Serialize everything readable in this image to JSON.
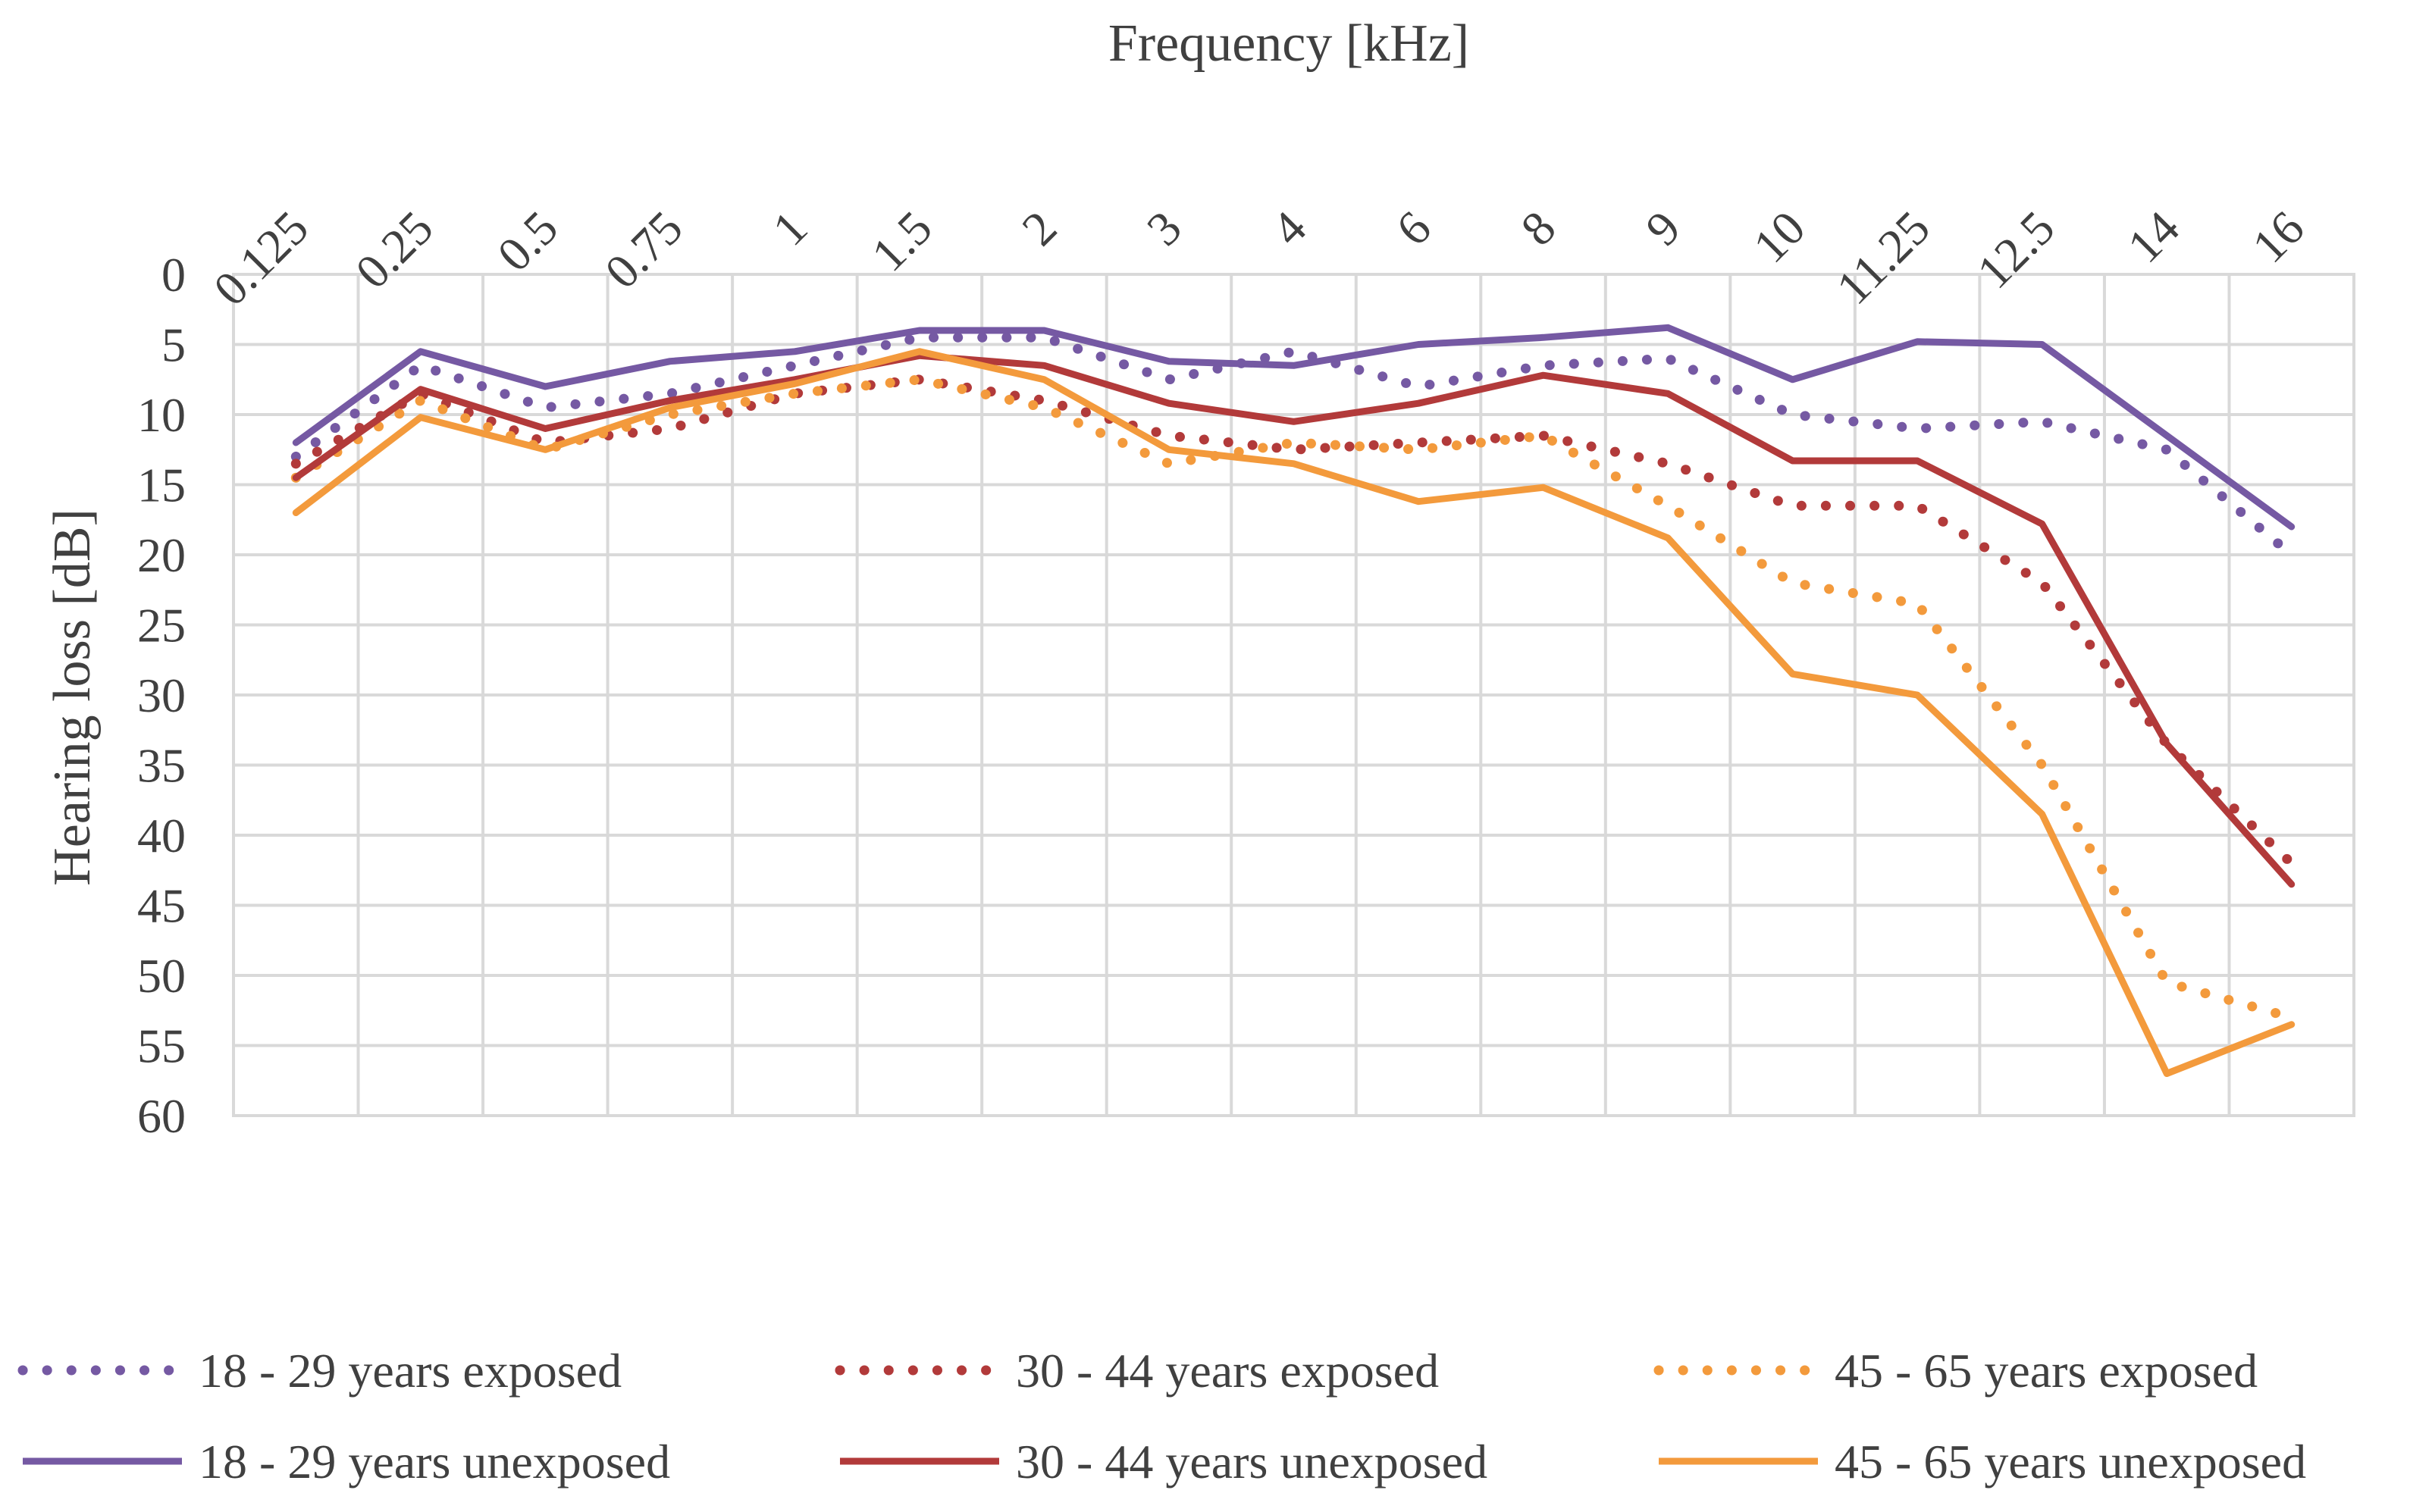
{
  "chart_data": {
    "type": "line",
    "title": "",
    "xlabel": "Frequency [kHz]",
    "ylabel": "Hearing loss [dB]",
    "x_axis_position": "top",
    "y_axis_inverted": true,
    "ylim": [
      0,
      60
    ],
    "y_ticks": [
      0,
      5,
      10,
      15,
      20,
      25,
      30,
      35,
      40,
      45,
      50,
      55,
      60
    ],
    "grid": true,
    "legend_position": "bottom",
    "categories": [
      "0.125",
      "0.25",
      "0.5",
      "0.75",
      "1",
      "1.5",
      "2",
      "3",
      "4",
      "6",
      "8",
      "9",
      "10",
      "11.25",
      "12.5",
      "14",
      "16"
    ],
    "series": [
      {
        "name": "18 - 29 years exposed",
        "color": "#7559a3",
        "style": "dotted",
        "values": [
          13,
          6.5,
          9.5,
          8.5,
          6.5,
          4.5,
          4.5,
          7.5,
          5.5,
          8,
          6.5,
          6,
          10,
          11,
          10.5,
          12.5,
          20
        ]
      },
      {
        "name": "30 - 44 years exposed",
        "color": "#b23a3a",
        "style": "dotted",
        "values": [
          13.5,
          8.5,
          12,
          11,
          8.5,
          7.5,
          9,
          11.5,
          12.5,
          12,
          11.5,
          13.5,
          16.5,
          16.5,
          22,
          33.5,
          42
        ]
      },
      {
        "name": "45 - 65 years exposed",
        "color": "#f39a3c",
        "style": "dotted",
        "values": [
          14.5,
          9,
          12.5,
          10,
          8.5,
          7.5,
          9.5,
          13.5,
          12,
          12.5,
          11.5,
          16.5,
          22,
          23.5,
          35,
          50.5,
          53
        ]
      },
      {
        "name": "18 - 29 years unexposed",
        "color": "#7559a3",
        "style": "solid",
        "values": [
          12,
          5.5,
          8,
          6.2,
          5.5,
          4,
          4,
          6.2,
          6.5,
          5,
          4.5,
          3.8,
          7.5,
          4.8,
          5,
          11.5,
          18
        ]
      },
      {
        "name": "30 - 44 years unexposed",
        "color": "#b23a3a",
        "style": "solid",
        "values": [
          14.5,
          8.2,
          11,
          9,
          7.5,
          5.8,
          6.5,
          9.2,
          10.5,
          9.2,
          7.2,
          8.5,
          13.3,
          13.3,
          17.8,
          33.5,
          43.5
        ]
      },
      {
        "name": "45 - 65 years unexposed",
        "color": "#f39a3c",
        "style": "solid",
        "values": [
          17,
          10.2,
          12.5,
          9.5,
          7.8,
          5.5,
          7.5,
          12.5,
          13.5,
          16.2,
          15.2,
          18.8,
          28.5,
          30,
          38.5,
          57,
          53.5
        ]
      }
    ]
  }
}
